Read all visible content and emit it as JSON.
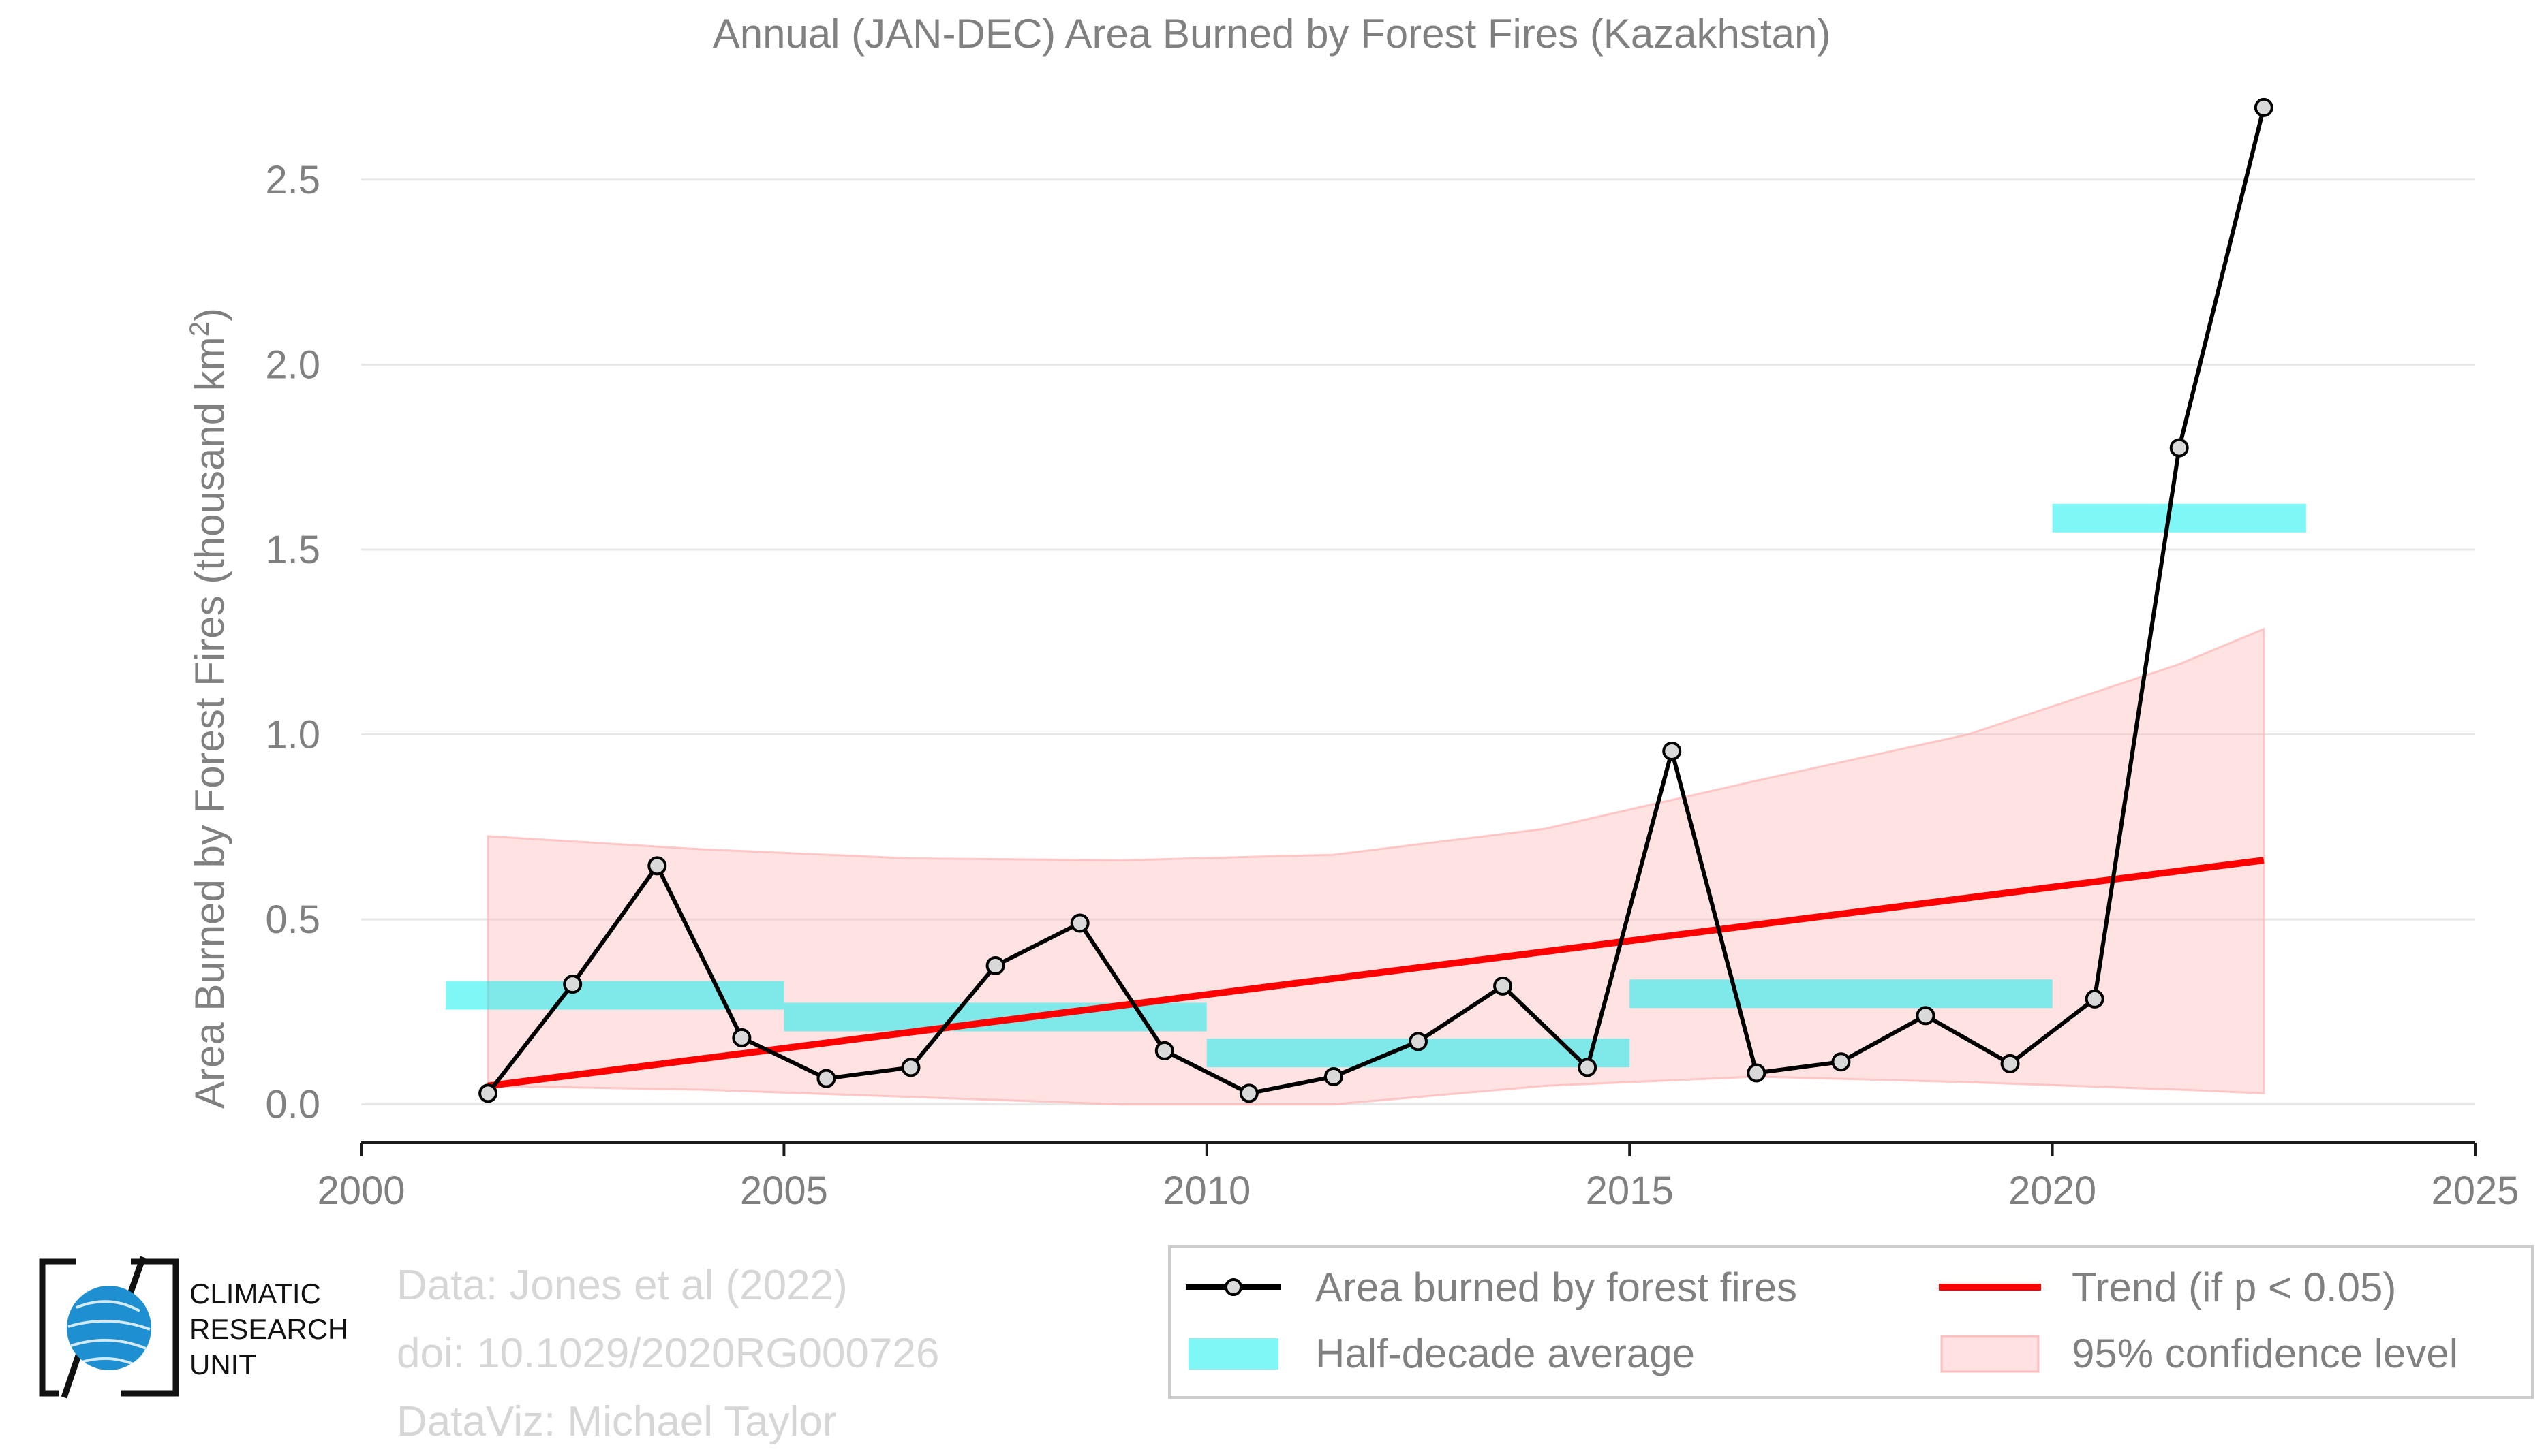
{
  "chart_data": {
    "type": "line",
    "title": "Annual (JAN-DEC) Area Burned by Forest Fires (Kazakhstan)",
    "xlabel": "",
    "ylabel_prefix": "Area Burned by Forest Fires (thousand km",
    "ylabel_sup": "2",
    "ylabel_suffix": ")",
    "xlim": [
      2000,
      2025
    ],
    "ylim": [
      -0.1,
      2.75
    ],
    "xticks": [
      2000,
      2005,
      2010,
      2015,
      2020,
      2025
    ],
    "yticks": [
      0.0,
      0.5,
      1.0,
      1.5,
      2.0,
      2.5
    ],
    "ytick_labels": [
      "0.0",
      "0.5",
      "1.0",
      "1.5",
      "2.0",
      "2.5"
    ],
    "grid": "horizontal",
    "legend_position": "bottom-right",
    "series": [
      {
        "name": "Area burned by forest fires",
        "kind": "line-markers",
        "color": "#000000",
        "x": [
          2001.5,
          2002.5,
          2003.5,
          2004.5,
          2005.5,
          2006.5,
          2007.5,
          2008.5,
          2009.5,
          2010.5,
          2011.5,
          2012.5,
          2013.5,
          2014.5,
          2015.5,
          2016.5,
          2017.5,
          2018.5,
          2019.5,
          2020.5,
          2021.5,
          2022.5
        ],
        "y": [
          0.03,
          0.325,
          0.645,
          0.18,
          0.07,
          0.1,
          0.375,
          0.49,
          0.145,
          0.03,
          0.075,
          0.17,
          0.32,
          0.1,
          0.955,
          0.085,
          0.115,
          0.24,
          0.11,
          0.285,
          1.775,
          2.695
        ]
      },
      {
        "name": "Half-decade average",
        "kind": "step-bars",
        "color": "#00f0f0",
        "segments": [
          {
            "x0": 2001,
            "x1": 2005,
            "y": 0.295
          },
          {
            "x0": 2005,
            "x1": 2010,
            "y": 0.236
          },
          {
            "x0": 2010,
            "x1": 2015,
            "y": 0.139
          },
          {
            "x0": 2015,
            "x1": 2020,
            "y": 0.299
          },
          {
            "x0": 2020,
            "x1": 2023,
            "y": 1.585
          }
        ]
      },
      {
        "name": "Trend (if p < 0.05)",
        "kind": "line",
        "color": "#ff0000",
        "x": [
          2001.5,
          2022.5
        ],
        "y": [
          0.05,
          0.66
        ]
      },
      {
        "name": "95% confidence level",
        "kind": "band",
        "color": "#ffb3b3",
        "x": [
          2001.5,
          2004.0,
          2006.5,
          2009.0,
          2011.5,
          2014.0,
          2016.5,
          2019.0,
          2021.5,
          2022.5
        ],
        "upper": [
          0.725,
          0.69,
          0.665,
          0.66,
          0.675,
          0.745,
          0.875,
          1.0,
          1.19,
          1.285
        ],
        "lower": [
          0.05,
          0.04,
          0.02,
          0.0,
          0.0,
          0.05,
          0.075,
          0.06,
          0.04,
          0.03
        ]
      }
    ],
    "legend": {
      "items": [
        {
          "label": "Area burned by forest fires",
          "key": "line-marker"
        },
        {
          "label": "Trend (if p < 0.05)",
          "key": "red-line"
        },
        {
          "label": "Half-decade average",
          "key": "cyan-bar"
        },
        {
          "label": "95% confidence level",
          "key": "pink-band"
        }
      ]
    }
  },
  "logo": {
    "lines": [
      "CLIMATIC",
      "RESEARCH",
      "UNIT"
    ],
    "icon": "globe-icon"
  },
  "credits": {
    "data": "Data: Jones et al (2022)",
    "doi": "doi: 10.1029/2020RG000726",
    "dataviz": "DataViz: Michael Taylor"
  }
}
